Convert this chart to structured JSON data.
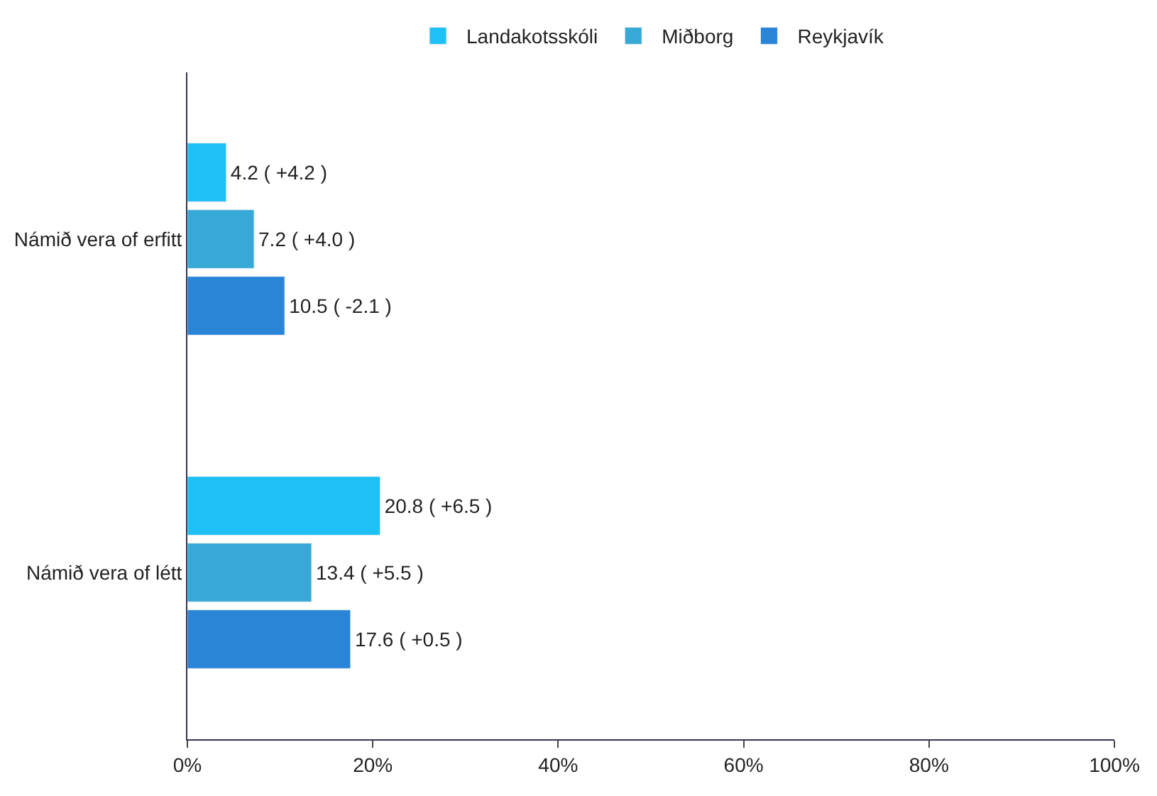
{
  "chart_data": {
    "type": "bar",
    "orientation": "horizontal",
    "categories": [
      "Námið vera of erfitt",
      "Námið vera of létt"
    ],
    "series": [
      {
        "name": "Landakotsskóli",
        "color": "#1ec0f6",
        "values": [
          4.2,
          20.8
        ],
        "value_labels": [
          "4.2 ( +4.2 )",
          "20.8 ( +6.5 )"
        ]
      },
      {
        "name": "Miðborg",
        "color": "#37a9d7",
        "values": [
          7.2,
          13.4
        ],
        "value_labels": [
          "7.2 ( +4.0 )",
          "13.4 ( +5.5 )"
        ]
      },
      {
        "name": "Reykjavík",
        "color": "#2a84d8",
        "values": [
          10.5,
          17.6
        ],
        "value_labels": [
          "10.5 ( -2.1 )",
          "17.6 ( +0.5 )"
        ]
      }
    ],
    "xlim": [
      0,
      100
    ],
    "xticks": [
      {
        "value": 0,
        "label": "0%"
      },
      {
        "value": 20,
        "label": "20%"
      },
      {
        "value": 40,
        "label": "40%"
      },
      {
        "value": 60,
        "label": "60%"
      },
      {
        "value": 80,
        "label": "80%"
      },
      {
        "value": 100,
        "label": "100%"
      }
    ],
    "legend": "top"
  }
}
